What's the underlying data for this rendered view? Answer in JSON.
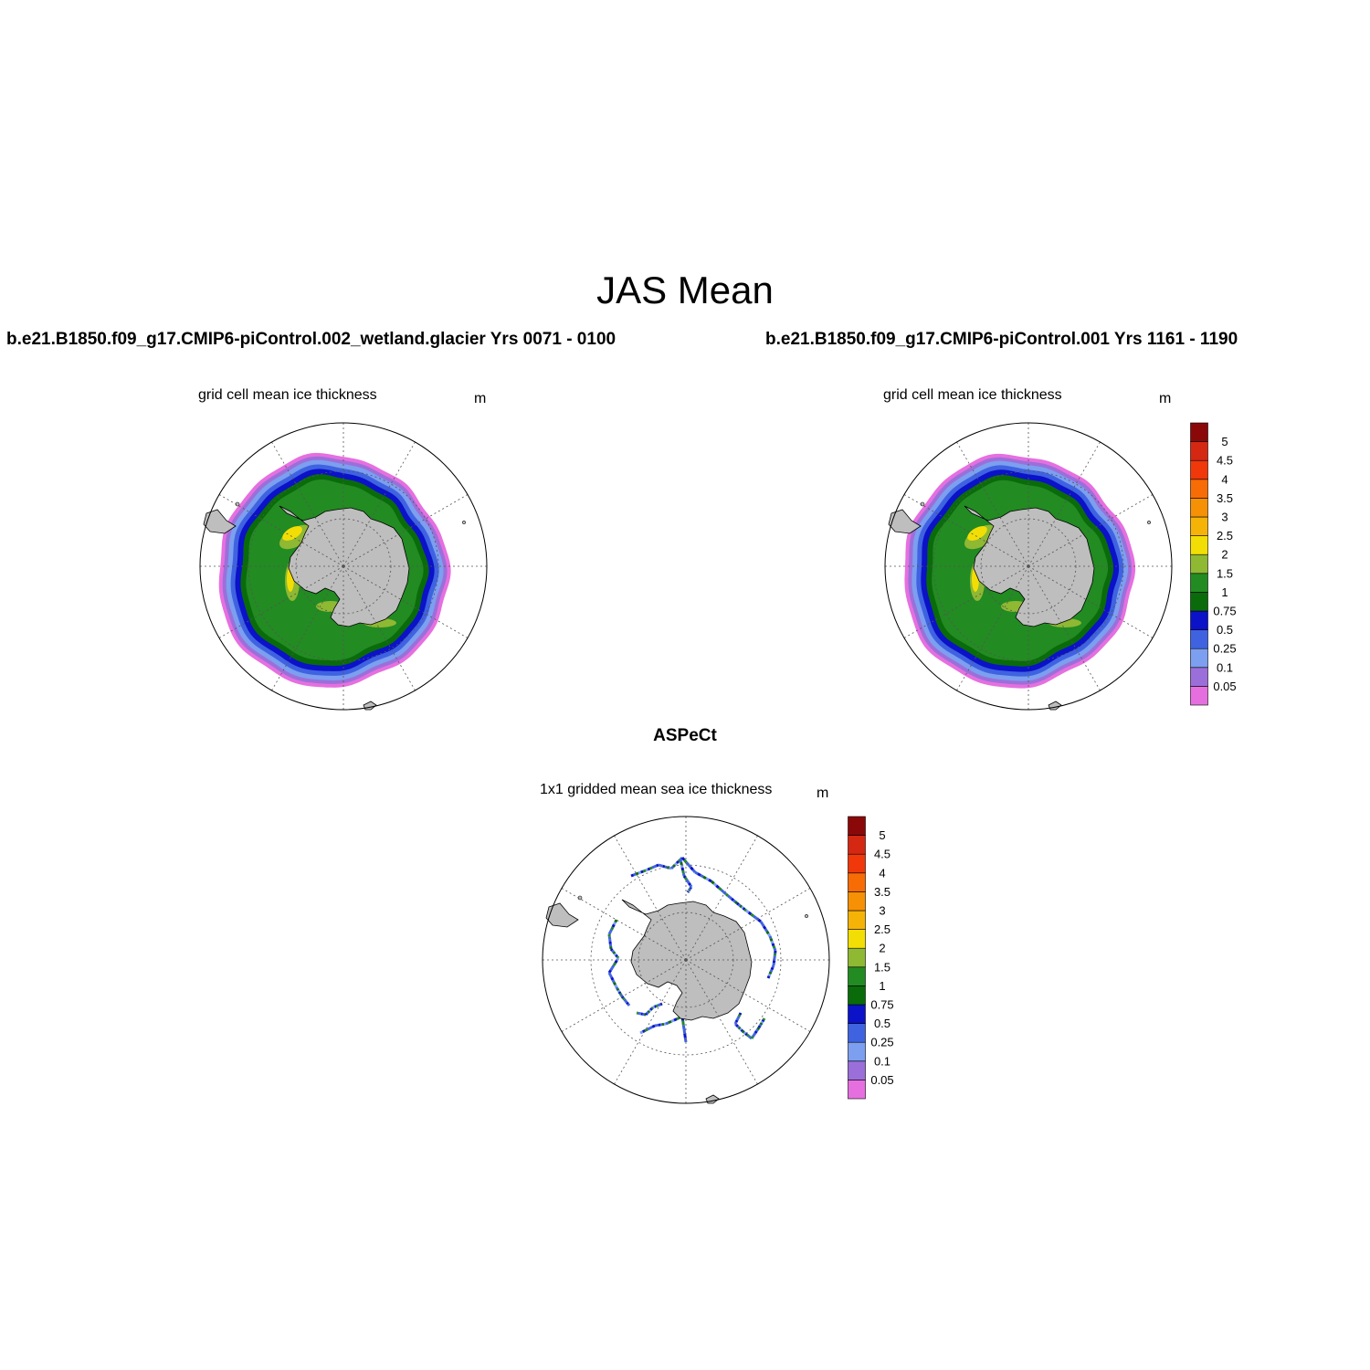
{
  "main_title": "JAS Mean",
  "panels": [
    {
      "run_title": "b.e21.B1850.f09_g17.CMIP6-piControl.002_wetland.glacier  Yrs 0071 - 0100",
      "label": "grid cell mean ice thickness",
      "units": "m"
    },
    {
      "run_title": "b.e21.B1850.f09_g17.CMIP6-piControl.001  Yrs 1161 - 1190",
      "label": "grid cell mean ice thickness",
      "units": "m"
    },
    {
      "run_title": "ASPeCt",
      "label": "1x1 gridded mean sea ice thickness",
      "units": "m"
    }
  ],
  "colorbar": {
    "levels": [
      "0.05",
      "0.1",
      "0.25",
      "0.5",
      "0.75",
      "1",
      "1.5",
      "2",
      "2.5",
      "3",
      "3.5",
      "4",
      "4.5",
      "5"
    ],
    "colors": [
      "#e66fe0",
      "#9b6fd9",
      "#7c9ff0",
      "#3f63e0",
      "#0b12c8",
      "#0a6b0a",
      "#228b22",
      "#8fb833",
      "#f2de05",
      "#f6b307",
      "#f69005",
      "#f86c06",
      "#f0380b",
      "#d42813",
      "#8b0808"
    ]
  },
  "map_colors": {
    "land": "#bebebe",
    "grid": "#555555"
  }
}
